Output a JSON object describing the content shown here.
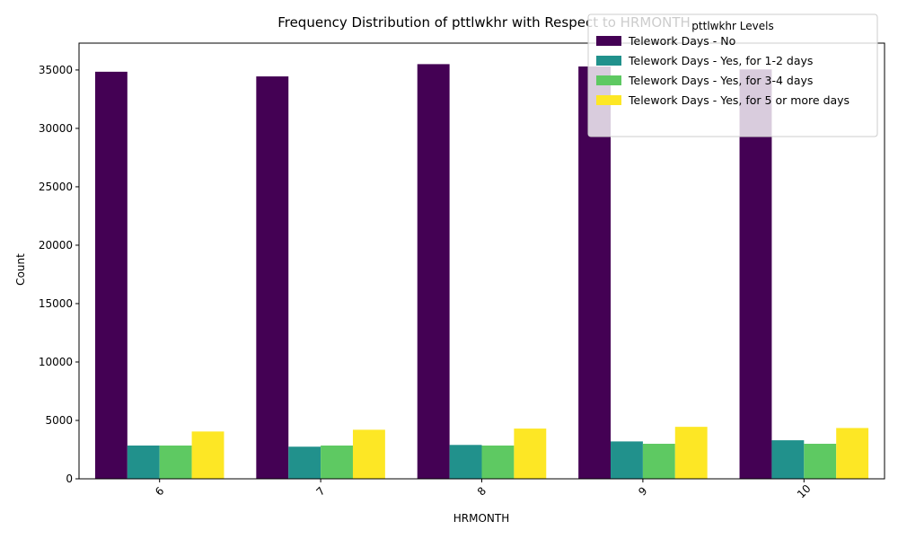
{
  "chart_data": {
    "type": "bar",
    "title": "Frequency Distribution of pttlwkhr with Respect to HRMONTH",
    "xlabel": "HRMONTH",
    "ylabel": "Count",
    "categories": [
      "6",
      "7",
      "8",
      "9",
      "10"
    ],
    "ylim": [
      0,
      37300
    ],
    "yticks": [
      0,
      5000,
      10000,
      15000,
      20000,
      25000,
      30000,
      35000
    ],
    "grid": false,
    "legend": {
      "title": "pttlwkhr Levels",
      "position": "top-right"
    },
    "series": [
      {
        "name": "Telework Days - No",
        "color": "#440154",
        "values": [
          34850,
          34450,
          35500,
          35300,
          35050
        ]
      },
      {
        "name": "Telework Days - Yes, for 1-2 days",
        "color": "#21918c",
        "values": [
          2850,
          2750,
          2900,
          3200,
          3300
        ]
      },
      {
        "name": "Telework Days - Yes, for 3-4 days",
        "color": "#5ec962",
        "values": [
          2850,
          2850,
          2850,
          3000,
          3000
        ]
      },
      {
        "name": "Telework Days - Yes, for 5 or more days",
        "color": "#fde725",
        "values": [
          4050,
          4200,
          4300,
          4450,
          4350
        ]
      }
    ]
  }
}
